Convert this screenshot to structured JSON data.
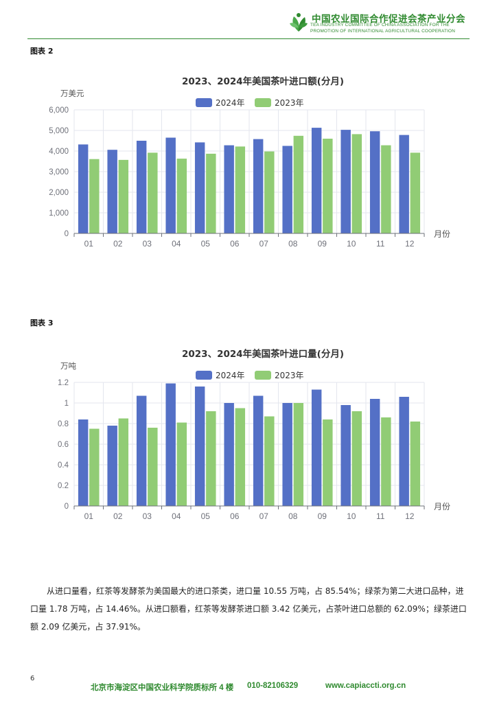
{
  "header": {
    "org_cn": "中国农业国际合作促进会茶产业分会",
    "org_en_line1": "TEA INDUSTRY COMMITTEE OF CHINA ASSOCIATION FOR THE",
    "org_en_line2": "PROMOTION OF INTERNATIONAL AGRICULTURAL COOPERATION",
    "logo_icon": "tea-leaf-logo-icon",
    "brand_color": "#2f8a2f"
  },
  "figures": [
    {
      "label": "图表 2"
    },
    {
      "label": "图表 3"
    }
  ],
  "chart_data": [
    {
      "type": "bar",
      "title": "2023、2024年美国茶叶进口额(分月)",
      "ylabel": "万美元",
      "xlabel": "月份",
      "ylim": [
        0,
        6000
      ],
      "yticks": [
        0,
        1000,
        2000,
        3000,
        4000,
        5000,
        6000
      ],
      "ytick_labels": [
        "0",
        "1,000",
        "2,000",
        "3,000",
        "4,000",
        "5,000",
        "6,000"
      ],
      "categories": [
        "01",
        "02",
        "03",
        "04",
        "05",
        "06",
        "07",
        "08",
        "09",
        "10",
        "11",
        "12"
      ],
      "series": [
        {
          "name": "2024年",
          "color": "#5470c6",
          "values": [
            4320,
            4060,
            4500,
            4650,
            4420,
            4280,
            4580,
            4250,
            5130,
            5030,
            4960,
            4780
          ]
        },
        {
          "name": "2023年",
          "color": "#91cc75",
          "values": [
            3610,
            3570,
            3920,
            3630,
            3870,
            4220,
            3980,
            4740,
            4600,
            4820,
            4280,
            3920
          ]
        }
      ],
      "grid": true,
      "legend": "top-center"
    },
    {
      "type": "bar",
      "title": "2023、2024年美国茶叶进口量(分月)",
      "ylabel": "万吨",
      "xlabel": "月份",
      "ylim": [
        0,
        1.2
      ],
      "yticks": [
        0,
        0.2,
        0.4,
        0.6,
        0.8,
        1.0,
        1.2
      ],
      "ytick_labels": [
        "0",
        "0.2",
        "0.4",
        "0.6",
        "0.8",
        "1",
        "1.2"
      ],
      "categories": [
        "01",
        "02",
        "03",
        "04",
        "05",
        "06",
        "07",
        "08",
        "09",
        "10",
        "11",
        "12"
      ],
      "series": [
        {
          "name": "2024年",
          "color": "#5470c6",
          "values": [
            0.84,
            0.78,
            1.07,
            1.19,
            1.16,
            1.0,
            1.07,
            1.0,
            1.13,
            0.98,
            1.04,
            1.06
          ]
        },
        {
          "name": "2023年",
          "color": "#91cc75",
          "values": [
            0.75,
            0.85,
            0.76,
            0.81,
            0.92,
            0.95,
            0.87,
            1.0,
            0.84,
            0.92,
            0.86,
            0.82
          ]
        }
      ],
      "grid": true,
      "legend": "top-center"
    }
  ],
  "paragraph": "从进口量看，红茶等发酵茶为美国最大的进口茶类，进口量 10.55 万吨，占 85.54%；绿茶为第二大进口品种，进口量 1.78 万吨，占 14.46%。从进口额看，红茶等发酵茶进口额 3.42 亿美元，占茶叶进口总额的 62.09%；绿茶进口额 2.09 亿美元，占 37.91%。",
  "page_number": "6",
  "footer": {
    "address": "北京市海淀区中国农业科学院质标所 4 楼",
    "phone": "010-82106329",
    "website": "www.capiaccti.org.cn"
  }
}
